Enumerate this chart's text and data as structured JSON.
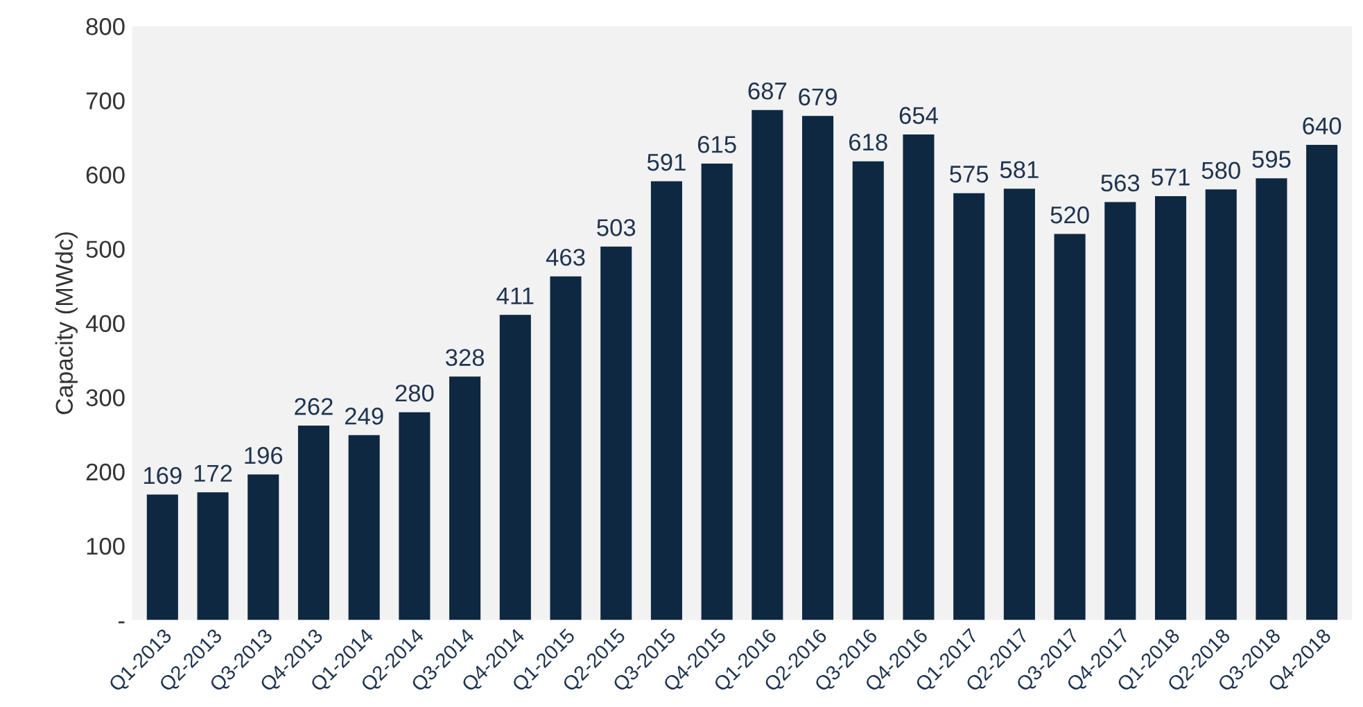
{
  "chart_data": {
    "type": "bar",
    "ylabel": "Capacity (MWdc)",
    "categories": [
      "Q1-2013",
      "Q2-2013",
      "Q3-2013",
      "Q4-2013",
      "Q1-2014",
      "Q2-2014",
      "Q3-2014",
      "Q4-2014",
      "Q1-2015",
      "Q2-2015",
      "Q3-2015",
      "Q4-2015",
      "Q1-2016",
      "Q2-2016",
      "Q3-2016",
      "Q4-2016",
      "Q1-2017",
      "Q2-2017",
      "Q3-2017",
      "Q4-2017",
      "Q1-2018",
      "Q2-2018",
      "Q3-2018",
      "Q4-2018"
    ],
    "values": [
      169,
      172,
      196,
      262,
      249,
      280,
      328,
      411,
      463,
      503,
      591,
      615,
      687,
      679,
      618,
      654,
      575,
      581,
      520,
      563,
      571,
      580,
      595,
      640
    ],
    "color": "#0e2841",
    "ylim": [
      0,
      800
    ],
    "yticks": [
      {
        "value": 0,
        "label": "-"
      },
      100,
      200,
      300,
      400,
      500,
      600,
      700,
      800
    ],
    "data_labels": true,
    "grid": false,
    "legend": false
  }
}
